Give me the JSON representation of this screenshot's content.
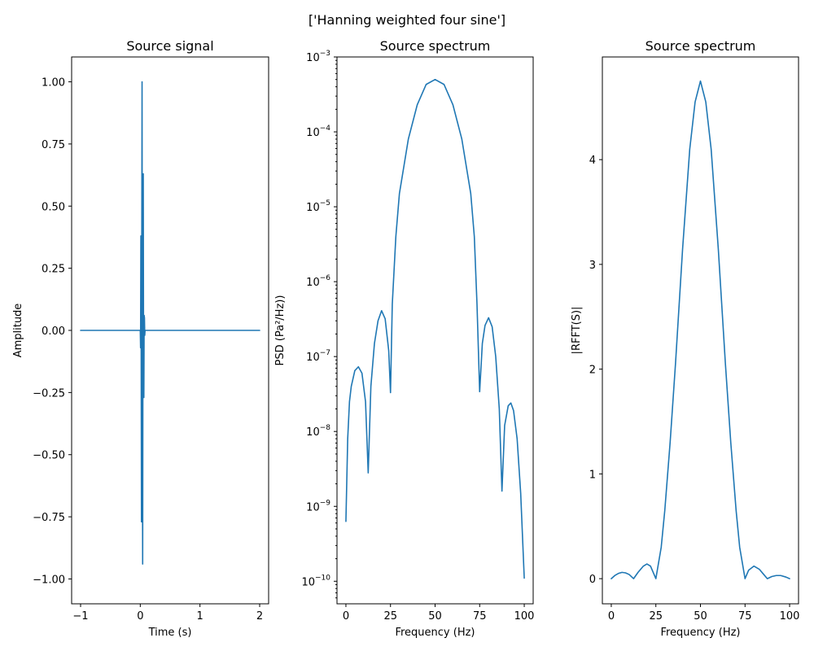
{
  "figure": {
    "suptitle": "['Hanning weighted four sine']",
    "line_color": "#1f77b4"
  },
  "chart_data": [
    {
      "type": "line",
      "title": "Source signal",
      "xlabel": "Time (s)",
      "ylabel": "Amplitude",
      "xlim": [
        -1.15,
        2.15
      ],
      "ylim": [
        -1.1,
        1.1
      ],
      "xticks": [
        -1,
        0,
        1,
        2
      ],
      "xtick_labels": [
        "−1",
        "0",
        "1",
        "2"
      ],
      "yticks": [
        -1.0,
        -0.75,
        -0.5,
        -0.25,
        0.0,
        0.25,
        0.5,
        0.75,
        1.0
      ],
      "ytick_labels": [
        "−1.00",
        "−0.75",
        "−0.50",
        "−0.25",
        "0.00",
        "0.25",
        "0.50",
        "0.75",
        "1.00"
      ],
      "yscale": "linear",
      "series": [
        {
          "x": [
            -1.0,
            0.0,
            0.005,
            0.01,
            0.015,
            0.02,
            0.025,
            0.03,
            0.035,
            0.04,
            0.045,
            0.05,
            0.055,
            0.06,
            0.065,
            0.07,
            0.075,
            0.08,
            2.0
          ],
          "y": [
            0.0,
            0.0,
            -0.07,
            0.38,
            -0.05,
            -0.77,
            0.35,
            1.0,
            -0.35,
            -0.94,
            0.15,
            0.63,
            -0.1,
            -0.27,
            0.06,
            0.05,
            -0.02,
            0.0,
            0.0
          ]
        }
      ]
    },
    {
      "type": "line",
      "title": "Source spectrum",
      "xlabel": "Frequency (Hz)",
      "ylabel": "PSD (Pa²/Hz))",
      "xlim": [
        -5,
        105
      ],
      "ylim": [
        5e-11,
        0.001
      ],
      "xticks": [
        0,
        25,
        50,
        75,
        100
      ],
      "xtick_labels": [
        "0",
        "25",
        "50",
        "75",
        "100"
      ],
      "yticks": [
        1e-10,
        1e-09,
        1e-08,
        1e-07,
        1e-06,
        1e-05,
        0.0001,
        0.001
      ],
      "ytick_labels": [
        [
          "10",
          "−10"
        ],
        [
          "10",
          "−9"
        ],
        [
          "10",
          "−8"
        ],
        [
          "10",
          "−7"
        ],
        [
          "10",
          "−6"
        ],
        [
          "10",
          "−5"
        ],
        [
          "10",
          "−4"
        ],
        [
          "10",
          "−3"
        ]
      ],
      "yscale": "log",
      "series": [
        {
          "x": [
            0,
            1,
            2,
            3,
            5,
            7,
            9,
            11,
            12.5,
            14,
            16,
            18,
            20,
            22,
            24,
            25,
            26,
            28,
            30,
            35,
            40,
            45,
            50,
            55,
            60,
            65,
            70,
            72,
            73.5,
            75,
            76.5,
            78,
            80,
            82,
            84,
            86,
            87.5,
            89,
            91,
            92.5,
            94,
            96,
            98,
            100
          ],
          "y": [
            6.3e-10,
            8e-09,
            2.5e-08,
            4e-08,
            6.5e-08,
            7.3e-08,
            6e-08,
            2.5e-08,
            2.8e-09,
            4e-08,
            1.5e-07,
            3e-07,
            4.1e-07,
            3.2e-07,
            1.2e-07,
            3.3e-08,
            5e-07,
            4e-06,
            1.5e-05,
            8e-05,
            0.00023,
            0.00043,
            0.0005,
            0.00043,
            0.00023,
            8e-05,
            1.5e-05,
            4e-06,
            5e-07,
            3.4e-08,
            1.5e-07,
            2.6e-07,
            3.3e-07,
            2.5e-07,
            1e-07,
            2e-08,
            1.6e-09,
            1.2e-08,
            2.2e-08,
            2.4e-08,
            1.9e-08,
            8e-09,
            1.5e-09,
            1.1e-10
          ]
        }
      ]
    },
    {
      "type": "line",
      "title": "Source spectrum",
      "xlabel": "Frequency (Hz)",
      "ylabel": "|RFFT(S)|",
      "xlim": [
        -5,
        105
      ],
      "ylim": [
        -0.24,
        4.98
      ],
      "xticks": [
        0,
        25,
        50,
        75,
        100
      ],
      "xtick_labels": [
        "0",
        "25",
        "50",
        "75",
        "100"
      ],
      "yticks": [
        0,
        1,
        2,
        3,
        4
      ],
      "ytick_labels": [
        "0",
        "1",
        "2",
        "3",
        "4"
      ],
      "yscale": "linear",
      "series": [
        {
          "x": [
            0,
            2,
            4,
            6,
            8,
            10,
            12.5,
            15,
            18,
            20,
            22,
            25,
            28,
            30,
            33,
            36,
            40,
            44,
            47,
            50,
            53,
            56,
            60,
            64,
            67,
            70,
            72,
            75,
            77,
            80,
            83,
            85,
            87.5,
            90,
            92.5,
            95,
            98,
            100
          ],
          "y": [
            0.0,
            0.03,
            0.05,
            0.06,
            0.055,
            0.04,
            0.0,
            0.06,
            0.12,
            0.14,
            0.12,
            0.0,
            0.3,
            0.65,
            1.3,
            2.05,
            3.15,
            4.1,
            4.55,
            4.75,
            4.55,
            4.1,
            3.15,
            2.05,
            1.3,
            0.65,
            0.3,
            0.0,
            0.08,
            0.12,
            0.09,
            0.05,
            0.0,
            0.02,
            0.03,
            0.03,
            0.015,
            0.0
          ]
        }
      ]
    }
  ]
}
